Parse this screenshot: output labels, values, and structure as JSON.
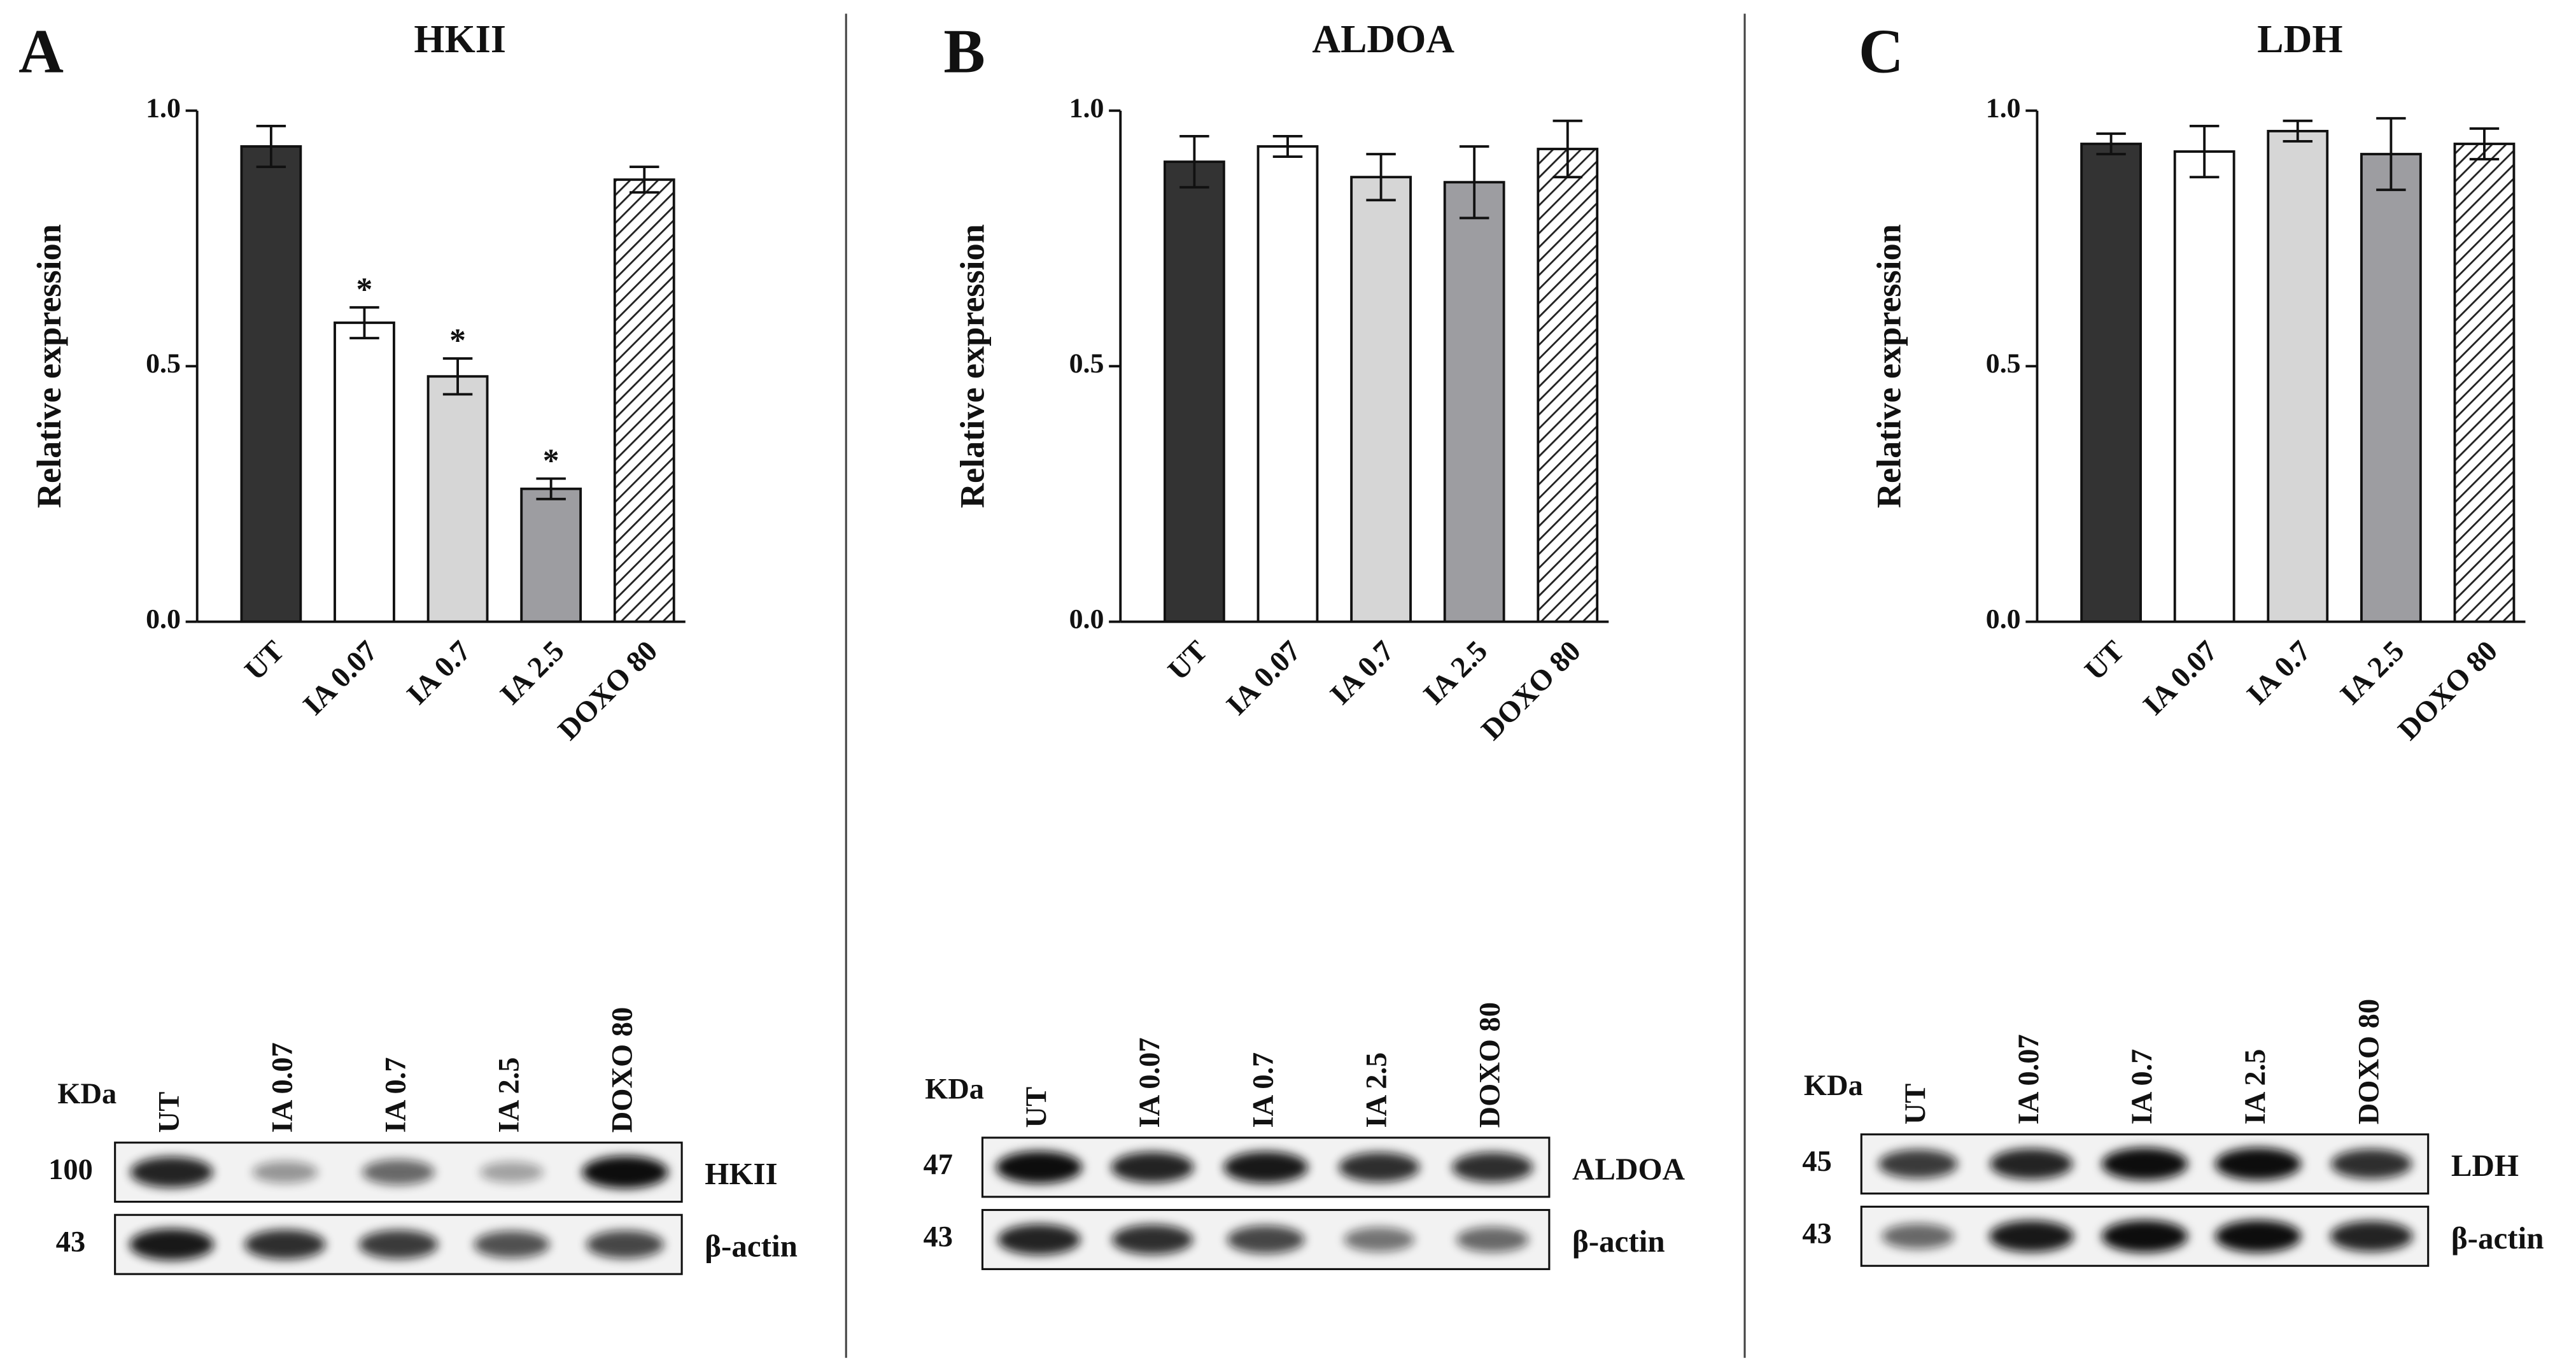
{
  "chart_data": [
    {
      "type": "bar",
      "panel": "A",
      "title": "HKII",
      "y_label": "Relative expression",
      "categories": [
        "UT",
        "IA 0.07",
        "IA 0.7",
        "IA 2.5",
        "DOXO 80"
      ],
      "values": [
        0.93,
        0.585,
        0.48,
        0.26,
        0.865
      ],
      "errors": [
        0.04,
        0.03,
        0.035,
        0.02,
        0.025
      ],
      "annotations": [
        null,
        "*",
        "*",
        "*",
        null
      ],
      "colors": [
        "#333333",
        "#ffffff",
        "#d6d6d6",
        "#9d9da1",
        "#ffffff"
      ],
      "hatch": [
        false,
        false,
        false,
        false,
        true
      ],
      "ylim": [
        0,
        1
      ],
      "yticks": [
        {
          "value": 0,
          "label": "0.0"
        },
        {
          "value": 0.5,
          "label": "0.5"
        },
        {
          "value": 1,
          "label": "1.0"
        }
      ],
      "blot": {
        "unit_label": "KDa",
        "lanes": [
          "UT",
          "IA 0.07",
          "IA 0.7",
          "IA 2.5",
          "DOXO 80"
        ],
        "rows": [
          {
            "kda": 100,
            "protein": "HKII"
          },
          {
            "kda": 43,
            "protein": "β-actin"
          }
        ]
      }
    },
    {
      "type": "bar",
      "panel": "B",
      "title": "ALDOA",
      "y_label": "Relative expression",
      "categories": [
        "UT",
        "IA 0.07",
        "IA 0.7",
        "IA 2.5",
        "DOXO 80"
      ],
      "values": [
        0.9,
        0.93,
        0.87,
        0.86,
        0.925
      ],
      "errors": [
        0.05,
        0.02,
        0.045,
        0.07,
        0.055
      ],
      "colors": [
        "#333333",
        "#ffffff",
        "#d6d6d6",
        "#9d9da1",
        "#ffffff"
      ],
      "hatch": [
        false,
        false,
        false,
        false,
        true
      ],
      "ylim": [
        0,
        1
      ],
      "yticks": [
        {
          "value": 0,
          "label": "0.0"
        },
        {
          "value": 0.5,
          "label": "0.5"
        },
        {
          "value": 1,
          "label": "1.0"
        }
      ],
      "blot": {
        "unit_label": "KDa",
        "lanes": [
          "UT",
          "IA 0.07",
          "IA 0.7",
          "IA 2.5",
          "DOXO 80"
        ],
        "rows": [
          {
            "kda": 47,
            "protein": "ALDOA"
          },
          {
            "kda": 43,
            "protein": "β-actin"
          }
        ]
      }
    },
    {
      "type": "bar",
      "panel": "C",
      "title": "LDH",
      "y_label": "Relative expression",
      "categories": [
        "UT",
        "IA 0.07",
        "IA 0.7",
        "IA 2.5",
        "DOXO 80"
      ],
      "values": [
        0.935,
        0.92,
        0.96,
        0.915,
        0.935
      ],
      "errors": [
        0.02,
        0.05,
        0.02,
        0.07,
        0.03
      ],
      "colors": [
        "#333333",
        "#ffffff",
        "#d6d6d6",
        "#9d9da1",
        "#ffffff"
      ],
      "hatch": [
        false,
        false,
        false,
        false,
        true
      ],
      "ylim": [
        0,
        1
      ],
      "yticks": [
        {
          "value": 0,
          "label": "0.0"
        },
        {
          "value": 0.5,
          "label": "0.5"
        },
        {
          "value": 1,
          "label": "1.0"
        }
      ],
      "blot": {
        "unit_label": "KDa",
        "lanes": [
          "UT",
          "IA 0.07",
          "IA 0.7",
          "IA 2.5",
          "DOXO 80"
        ],
        "rows": [
          {
            "kda": 45,
            "protein": "LDH"
          },
          {
            "kda": 43,
            "protein": "β-actin"
          }
        ]
      }
    }
  ]
}
